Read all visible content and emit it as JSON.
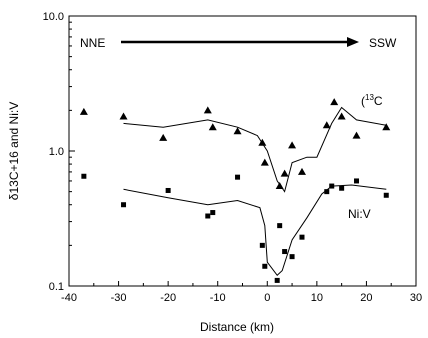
{
  "chart_data": {
    "type": "scatter",
    "title": "",
    "xlabel": "Distance (km)",
    "ylabel": "δ13C+16 and Ni:V",
    "x_ticks": [
      -40,
      -30,
      -20,
      -10,
      0,
      10,
      20,
      30
    ],
    "xlim": [
      -40,
      30
    ],
    "y_scale": "log",
    "ylim": [
      0.1,
      10
    ],
    "y_tick_values": [
      0.1,
      1,
      10
    ],
    "y_tick_labels": [
      "0.1",
      "1.0",
      "10.0"
    ],
    "grid": false,
    "annotations": {
      "left": "NNE",
      "right": "SSW",
      "arrow": "left-to-right",
      "series_label_c13": "(13C",
      "series_label_niv": "Ni:V"
    },
    "series": [
      {
        "name": "(13C",
        "marker": "triangle",
        "points": [
          [
            -37,
            1.95
          ],
          [
            -29,
            1.8
          ],
          [
            -21,
            1.25
          ],
          [
            -12,
            2.0
          ],
          [
            -11,
            1.5
          ],
          [
            -6,
            1.4
          ],
          [
            -1,
            1.15
          ],
          [
            -0.5,
            0.82
          ],
          [
            2.5,
            0.55
          ],
          [
            3.5,
            0.68
          ],
          [
            5,
            1.1
          ],
          [
            7,
            0.7
          ],
          [
            12,
            1.55
          ],
          [
            13.5,
            2.3
          ],
          [
            15,
            1.8
          ],
          [
            18,
            1.3
          ],
          [
            24,
            1.5
          ]
        ],
        "line": [
          [
            -29,
            1.6
          ],
          [
            -21,
            1.5
          ],
          [
            -12,
            1.7
          ],
          [
            -6,
            1.5
          ],
          [
            -2,
            1.3
          ],
          [
            0,
            1.0
          ],
          [
            2,
            0.6
          ],
          [
            3.5,
            0.5
          ],
          [
            5,
            0.82
          ],
          [
            8,
            0.9
          ],
          [
            10,
            0.9
          ],
          [
            13,
            1.6
          ],
          [
            15,
            2.1
          ],
          [
            18,
            1.7
          ],
          [
            24,
            1.55
          ]
        ]
      },
      {
        "name": "Ni:V",
        "marker": "square",
        "points": [
          [
            -37,
            0.65
          ],
          [
            -29,
            0.4
          ],
          [
            -20,
            0.51
          ],
          [
            -12,
            0.33
          ],
          [
            -11,
            0.35
          ],
          [
            -6,
            0.64
          ],
          [
            -1,
            0.2
          ],
          [
            -0.5,
            0.14
          ],
          [
            2,
            0.11
          ],
          [
            2.5,
            0.28
          ],
          [
            3.5,
            0.18
          ],
          [
            5,
            0.165
          ],
          [
            7,
            0.23
          ],
          [
            12,
            0.5
          ],
          [
            13,
            0.55
          ],
          [
            15,
            0.53
          ],
          [
            18,
            0.6
          ],
          [
            24,
            0.47
          ]
        ],
        "line": [
          [
            -29,
            0.52
          ],
          [
            -20,
            0.45
          ],
          [
            -12,
            0.4
          ],
          [
            -6,
            0.43
          ],
          [
            -1.5,
            0.38
          ],
          [
            -0.5,
            0.28
          ],
          [
            0,
            0.15
          ],
          [
            2,
            0.12
          ],
          [
            3,
            0.13
          ],
          [
            5,
            0.22
          ],
          [
            8,
            0.32
          ],
          [
            11,
            0.48
          ],
          [
            13,
            0.55
          ],
          [
            17,
            0.56
          ],
          [
            24,
            0.52
          ]
        ]
      }
    ]
  }
}
